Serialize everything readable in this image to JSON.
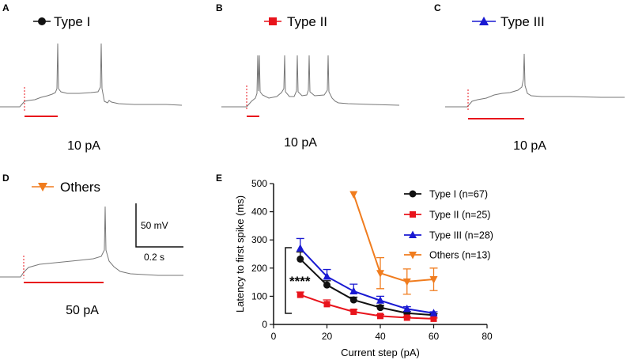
{
  "panels": [
    {
      "label": "A",
      "legend": "Type I",
      "color": "#111111",
      "marker": "circle",
      "stimulus": "10 pA"
    },
    {
      "label": "B",
      "legend": "Type II",
      "color": "#e8141c",
      "marker": "square",
      "stimulus": "10 pA"
    },
    {
      "label": "C",
      "legend": "Type III",
      "color": "#1919d2",
      "marker": "triangle-up",
      "stimulus": "10 pA"
    },
    {
      "label": "D",
      "legend": "Others",
      "color": "#f07c1e",
      "marker": "triangle-down",
      "stimulus": "50 pA"
    }
  ],
  "scalebar": {
    "voltage": "50 mV",
    "time": "0.2 s"
  },
  "panel_e_label": "E",
  "significance": "****",
  "chart_data": {
    "type": "line",
    "title": "",
    "xlabel": "Current step (pA)",
    "ylabel": "Latency to first spike (ms)",
    "xlim": [
      0,
      80
    ],
    "ylim": [
      0,
      500
    ],
    "xticks": [
      0,
      20,
      40,
      60,
      80
    ],
    "yticks": [
      0,
      100,
      200,
      300,
      400,
      500
    ],
    "legend_position": "top-right",
    "series": [
      {
        "name": "Type I (n=67)",
        "color": "#111111",
        "marker": "circle",
        "x": [
          10,
          20,
          30,
          40,
          50,
          60
        ],
        "values": [
          232,
          140,
          87,
          60,
          40,
          33
        ],
        "errors": [
          25,
          15,
          10,
          8,
          6,
          5
        ]
      },
      {
        "name": "Type II (n=25)",
        "color": "#e8141c",
        "marker": "square",
        "x": [
          10,
          20,
          30,
          40,
          50,
          60
        ],
        "values": [
          105,
          72,
          45,
          30,
          24,
          20
        ],
        "errors": [
          10,
          15,
          8,
          5,
          4,
          3
        ]
      },
      {
        "name": "Type III (n=28)",
        "color": "#1919d2",
        "marker": "triangle-up",
        "x": [
          10,
          20,
          30,
          40,
          50,
          60
        ],
        "values": [
          270,
          170,
          118,
          85,
          55,
          40
        ],
        "errors": [
          35,
          25,
          25,
          15,
          8,
          5
        ]
      },
      {
        "name": "Others (n=13)",
        "color": "#f07c1e",
        "marker": "triangle-down",
        "x": [
          30,
          40,
          50,
          60
        ],
        "values": [
          462,
          182,
          152,
          160
        ],
        "errors": [
          0,
          55,
          45,
          40
        ]
      }
    ]
  }
}
